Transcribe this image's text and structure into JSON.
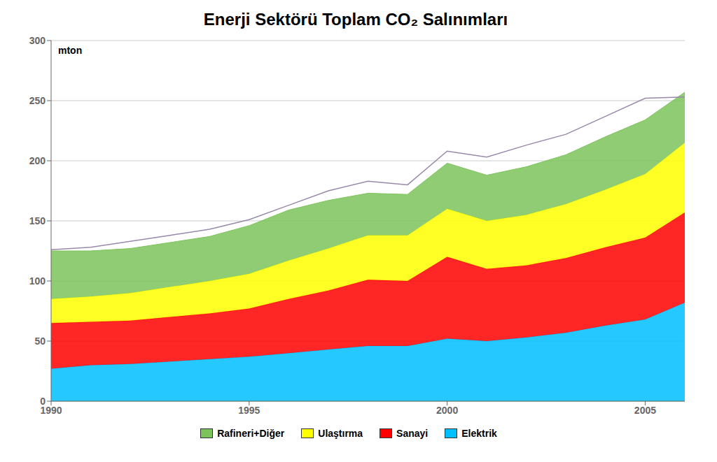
{
  "chart_data": {
    "type": "area",
    "title": "Enerji Sektörü Toplam CO₂ Salınımları",
    "ylabel": "mton",
    "x": [
      1990,
      1991,
      1992,
      1993,
      1994,
      1995,
      1996,
      1997,
      1998,
      1999,
      2000,
      2001,
      2002,
      2003,
      2004,
      2005,
      2006
    ],
    "series": [
      {
        "name": "Elektrik",
        "color": "#00BFFF",
        "values": [
          27,
          30,
          31,
          33,
          35,
          37,
          40,
          43,
          46,
          46,
          52,
          50,
          53,
          57,
          63,
          68,
          82
        ]
      },
      {
        "name": "Sanayi",
        "color": "#FF0000",
        "values": [
          38,
          36,
          36,
          37,
          38,
          40,
          45,
          49,
          55,
          54,
          68,
          60,
          60,
          62,
          65,
          68,
          75
        ]
      },
      {
        "name": "Ulaştırma",
        "color": "#FFFF00",
        "values": [
          20,
          21,
          23,
          25,
          27,
          29,
          32,
          35,
          37,
          38,
          40,
          40,
          42,
          45,
          48,
          53,
          58
        ]
      },
      {
        "name": "Rafineri+Diğer",
        "color": "#7DC35B",
        "values": [
          40,
          38,
          37,
          37,
          37,
          40,
          42,
          40,
          35,
          34,
          38,
          38,
          40,
          41,
          44,
          45,
          42
        ]
      },
      {
        "type": "line",
        "color": "#9988AA",
        "values": [
          126,
          128,
          133,
          138,
          143,
          151,
          163,
          175,
          183,
          180,
          208,
          203,
          213,
          222,
          237,
          252,
          253
        ]
      }
    ],
    "stacked": true,
    "xlim": [
      1990,
      2006
    ],
    "xticks": [
      1990,
      1995,
      2000,
      2005
    ],
    "ylim": [
      0,
      300
    ],
    "yticks": [
      0,
      50,
      100,
      150,
      200,
      250,
      300
    ],
    "grid": true,
    "legend": "bottom"
  }
}
